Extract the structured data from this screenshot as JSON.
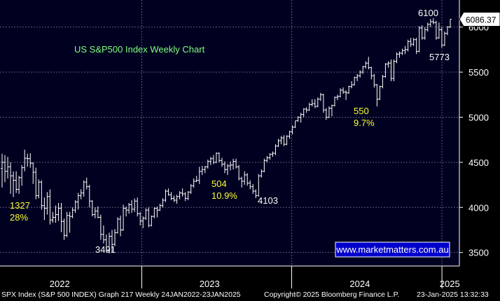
{
  "colors": {
    "background": "#000000",
    "plot_background": "#000020",
    "grid": "#5a5a78",
    "candle": "#ffffff",
    "title": "#7fff7f",
    "annotation_yellow": "#ffff33",
    "annotation_white": "#ffffff",
    "url_box_bg": "#0000cc",
    "url_box_border": "#ffffff"
  },
  "chart_data": {
    "type": "line",
    "title": "US S&P500 Index Weekly Chart",
    "watermark": "www.marketmatters.com.au",
    "y_ticks": [
      3500,
      4000,
      4500,
      5000,
      5500,
      6000
    ],
    "y_range": [
      3350,
      6300
    ],
    "x_range": [
      "2022-01-24",
      "2025-01-23"
    ],
    "x_tick_labels": [
      {
        "label": "2022",
        "date": "2022-06-15"
      },
      {
        "label": "2023",
        "date": "2023-06-15"
      },
      {
        "label": "2024",
        "date": "2024-06-15"
      },
      {
        "label": "2025",
        "date": "2025-01-20"
      }
    ],
    "x_tick_marks": [
      "2023-01-01",
      "2024-01-01",
      "2025-01-01"
    ],
    "last_price_label": "6086.37",
    "last_price": 6086.37,
    "series": [
      {
        "values": [
          [
            4432,
            4595,
            4220,
            4500
          ],
          [
            4500,
            4580,
            4280,
            4400
          ],
          [
            4400,
            4560,
            4320,
            4450
          ],
          [
            4450,
            4500,
            4150,
            4350
          ],
          [
            4350,
            4400,
            4115,
            4300
          ],
          [
            4300,
            4400,
            4160,
            4200
          ],
          [
            4200,
            4350,
            4150,
            4330
          ],
          [
            4330,
            4470,
            4240,
            4440
          ],
          [
            4440,
            4640,
            4400,
            4545
          ],
          [
            4545,
            4595,
            4450,
            4540
          ],
          [
            4540,
            4600,
            4440,
            4490
          ],
          [
            4490,
            4500,
            4260,
            4390
          ],
          [
            4390,
            4440,
            4090,
            4130
          ],
          [
            4130,
            4310,
            4100,
            4280
          ],
          [
            4280,
            4300,
            3975,
            4020
          ],
          [
            4020,
            4110,
            3860,
            3990
          ],
          [
            3990,
            4170,
            3920,
            4120
          ],
          [
            4120,
            4200,
            3810,
            3860
          ],
          [
            3860,
            3950,
            3830,
            3890
          ],
          [
            3890,
            4020,
            3830,
            3920
          ],
          [
            3920,
            4050,
            3850,
            3990
          ],
          [
            3990,
            4050,
            3725,
            3845
          ],
          [
            3845,
            3875,
            3640,
            3690
          ],
          [
            3690,
            3950,
            3670,
            3910
          ],
          [
            3910,
            3950,
            3720,
            3900
          ],
          [
            3900,
            4000,
            3880,
            3970
          ],
          [
            3970,
            4080,
            3940,
            4060
          ],
          [
            4060,
            4160,
            3975,
            4130
          ],
          [
            4130,
            4200,
            4090,
            4160
          ],
          [
            4160,
            4300,
            4120,
            4280
          ],
          [
            4280,
            4330,
            4200,
            4230
          ],
          [
            4230,
            4250,
            4000,
            4070
          ],
          [
            4070,
            4080,
            3900,
            3920
          ],
          [
            3920,
            4000,
            3880,
            3960
          ],
          [
            3960,
            4010,
            3880,
            3890
          ],
          [
            3890,
            3920,
            3640,
            3700
          ],
          [
            3700,
            3800,
            3600,
            3640
          ],
          [
            3640,
            3700,
            3500,
            3520
          ],
          [
            3520,
            3720,
            3490,
            3680
          ],
          [
            3680,
            3750,
            3500,
            3590
          ],
          [
            3590,
            3760,
            3570,
            3720
          ],
          [
            3720,
            3890,
            3710,
            3870
          ],
          [
            3870,
            3910,
            3680,
            3750
          ],
          [
            3750,
            4030,
            3740,
            3990
          ],
          [
            3990,
            4010,
            3900,
            3970
          ],
          [
            3970,
            4050,
            3930,
            4030
          ],
          [
            4030,
            4080,
            3940,
            3980
          ],
          [
            3980,
            4100,
            3950,
            4070
          ],
          [
            4070,
            4110,
            3900,
            3930
          ],
          [
            3930,
            3950,
            3800,
            3850
          ],
          [
            3850,
            3900,
            3770,
            3880
          ],
          [
            3880,
            3990,
            3860,
            3970
          ],
          [
            3970,
            4000,
            3780,
            3800
          ],
          [
            3800,
            3910,
            3790,
            3900
          ],
          [
            3900,
            4000,
            3880,
            3990
          ],
          [
            3990,
            4010,
            3890,
            3970
          ],
          [
            3970,
            4040,
            3960,
            4020
          ],
          [
            4020,
            4100,
            4000,
            4080
          ],
          [
            4080,
            4200,
            4060,
            4180
          ],
          [
            4180,
            4210,
            4130,
            4140
          ],
          [
            4140,
            4170,
            4080,
            4100
          ],
          [
            4100,
            4130,
            4060,
            4080
          ],
          [
            4080,
            4140,
            4040,
            4120
          ],
          [
            4120,
            4180,
            4090,
            4160
          ],
          [
            4160,
            4210,
            4120,
            4150
          ],
          [
            4150,
            4170,
            4070,
            4100
          ],
          [
            4100,
            4180,
            4080,
            4170
          ],
          [
            4170,
            4260,
            4150,
            4240
          ],
          [
            4240,
            4320,
            4220,
            4290
          ],
          [
            4290,
            4350,
            4280,
            4300
          ],
          [
            4300,
            4450,
            4260,
            4400
          ],
          [
            4400,
            4460,
            4360,
            4420
          ],
          [
            4420,
            4460,
            4380,
            4450
          ],
          [
            4450,
            4530,
            4430,
            4510
          ],
          [
            4510,
            4560,
            4470,
            4540
          ],
          [
            4540,
            4580,
            4480,
            4500
          ],
          [
            4500,
            4610,
            4490,
            4600
          ],
          [
            4600,
            4610,
            4500,
            4520
          ],
          [
            4520,
            4550,
            4450,
            4480
          ],
          [
            4480,
            4510,
            4380,
            4420
          ],
          [
            4420,
            4480,
            4360,
            4460
          ],
          [
            4460,
            4510,
            4410,
            4470
          ],
          [
            4470,
            4540,
            4420,
            4510
          ],
          [
            4510,
            4540,
            4430,
            4450
          ],
          [
            4450,
            4470,
            4300,
            4320
          ],
          [
            4320,
            4340,
            4220,
            4290
          ],
          [
            4290,
            4400,
            4250,
            4360
          ],
          [
            4360,
            4380,
            4240,
            4270
          ],
          [
            4270,
            4300,
            4200,
            4230
          ],
          [
            4230,
            4260,
            4150,
            4180
          ],
          [
            4180,
            4200,
            4103,
            4130
          ],
          [
            4130,
            4370,
            4120,
            4350
          ],
          [
            4350,
            4420,
            4330,
            4400
          ],
          [
            4400,
            4540,
            4390,
            4520
          ],
          [
            4520,
            4570,
            4500,
            4550
          ],
          [
            4550,
            4600,
            4530,
            4590
          ],
          [
            4590,
            4620,
            4560,
            4600
          ],
          [
            4600,
            4700,
            4580,
            4680
          ],
          [
            4680,
            4760,
            4670,
            4740
          ],
          [
            4740,
            4790,
            4700,
            4770
          ],
          [
            4770,
            4800,
            4680,
            4700
          ],
          [
            4700,
            4800,
            4690,
            4790
          ],
          [
            4790,
            4850,
            4760,
            4840
          ],
          [
            4840,
            4910,
            4810,
            4890
          ],
          [
            4890,
            4960,
            4880,
            4960
          ],
          [
            4960,
            5010,
            4950,
            5000
          ],
          [
            5000,
            5050,
            4940,
            5030
          ],
          [
            5030,
            5100,
            5000,
            5090
          ],
          [
            5090,
            5110,
            5050,
            5080
          ],
          [
            5080,
            5160,
            5070,
            5140
          ],
          [
            5140,
            5200,
            5120,
            5150
          ],
          [
            5150,
            5200,
            5100,
            5120
          ],
          [
            5120,
            5220,
            5110,
            5200
          ],
          [
            5200,
            5270,
            5180,
            5250
          ],
          [
            5250,
            5260,
            5050,
            5080
          ],
          [
            5080,
            5100,
            4970,
            5000
          ],
          [
            5000,
            5120,
            4990,
            5100
          ],
          [
            5100,
            5140,
            5010,
            5130
          ],
          [
            5130,
            5230,
            5120,
            5220
          ],
          [
            5220,
            5250,
            5190,
            5230
          ],
          [
            5230,
            5320,
            5220,
            5300
          ],
          [
            5300,
            5330,
            5260,
            5280
          ],
          [
            5280,
            5300,
            5190,
            5270
          ],
          [
            5270,
            5350,
            5260,
            5340
          ],
          [
            5340,
            5400,
            5320,
            5360
          ],
          [
            5360,
            5450,
            5350,
            5440
          ],
          [
            5440,
            5480,
            5400,
            5460
          ],
          [
            5460,
            5520,
            5440,
            5500
          ],
          [
            5500,
            5570,
            5480,
            5560
          ],
          [
            5560,
            5620,
            5540,
            5600
          ],
          [
            5600,
            5670,
            5530,
            5550
          ],
          [
            5550,
            5560,
            5420,
            5460
          ],
          [
            5460,
            5480,
            5330,
            5360
          ],
          [
            5360,
            5370,
            5120,
            5200
          ],
          [
            5200,
            5350,
            5190,
            5340
          ],
          [
            5340,
            5470,
            5320,
            5450
          ],
          [
            5450,
            5600,
            5440,
            5590
          ],
          [
            5590,
            5620,
            5550,
            5600
          ],
          [
            5600,
            5640,
            5400,
            5430
          ],
          [
            5430,
            5640,
            5400,
            5620
          ],
          [
            5620,
            5720,
            5600,
            5700
          ],
          [
            5700,
            5730,
            5660,
            5710
          ],
          [
            5710,
            5760,
            5690,
            5740
          ],
          [
            5740,
            5790,
            5700,
            5750
          ],
          [
            5750,
            5860,
            5730,
            5840
          ],
          [
            5840,
            5880,
            5780,
            5810
          ],
          [
            5810,
            5880,
            5790,
            5860
          ],
          [
            5860,
            5880,
            5700,
            5730
          ],
          [
            5730,
            6010,
            5720,
            5990
          ],
          [
            5990,
            6020,
            5860,
            5880
          ],
          [
            5880,
            6000,
            5860,
            5970
          ],
          [
            5970,
            6050,
            5950,
            6030
          ],
          [
            6030,
            6090,
            6000,
            6060
          ],
          [
            6060,
            6100,
            6030,
            6050
          ],
          [
            6050,
            6070,
            5860,
            5880
          ],
          [
            5880,
            6050,
            5870,
            5970
          ],
          [
            5970,
            6000,
            5773,
            5800
          ],
          [
            5800,
            5950,
            5790,
            5930
          ],
          [
            5930,
            6010,
            5910,
            6000
          ],
          [
            6000,
            6086,
            5990,
            6086
          ]
        ]
      }
    ],
    "annotations": [
      {
        "text": "1327",
        "color": "yellow"
      },
      {
        "text": "28%",
        "color": "yellow"
      },
      {
        "text": "504",
        "color": "yellow"
      },
      {
        "text": "10.9%",
        "color": "yellow"
      },
      {
        "text": "550",
        "color": "yellow"
      },
      {
        "text": "9.7%",
        "color": "yellow"
      },
      {
        "text": "3491",
        "color": "white"
      },
      {
        "text": "4103",
        "color": "white"
      },
      {
        "text": "6100",
        "color": "white"
      },
      {
        "text": "5773",
        "color": "white"
      }
    ]
  },
  "footer": {
    "left": "SPX Index (S&P 500 INDEX) Graph 217  Weekly 24JAN2022-23JAN2025",
    "middle": "Copyright© 2025 Bloomberg Finance L.P.",
    "right": "23-Jan-2025 13:32:33"
  }
}
